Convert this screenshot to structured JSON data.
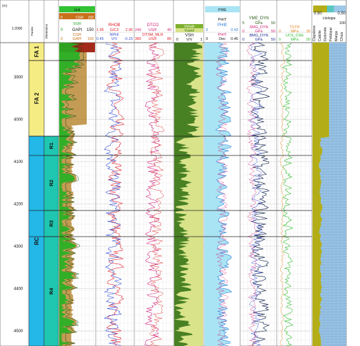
{
  "depth_track": {
    "scale_label": "1:2000",
    "ticks": [
      "3900",
      "4000",
      "4100",
      "4200",
      "4300",
      "4400",
      "4500"
    ]
  },
  "track_titles": {
    "facies": "Facies",
    "subfacies": "Elementos"
  },
  "facies": [
    {
      "label": "FA 1",
      "color": "#f5ec84"
    },
    {
      "label": "FA 2",
      "color": "#f5ec84"
    },
    {
      "label": "RC",
      "color": "#23b8e8"
    }
  ],
  "subfacies": [
    {
      "label": "R1",
      "color": "#1fc6b0"
    },
    {
      "label": "R2",
      "color": "#1fc6b0"
    },
    {
      "label": "R3",
      "color": "#1fc6b0"
    },
    {
      "label": "R4",
      "color": "#1fc6b0"
    }
  ],
  "gr_header": {
    "fill_label": "Unit",
    "cgr_label": "CGR",
    "cgr_min": "0",
    "cgr_max": "150",
    "sgr_label": "SGR",
    "gapi_min": "0",
    "gapi_unit": "GAPI",
    "gapi_max": "150",
    "cgr2_label": "CGR",
    "cgr2_min": "0",
    "cgr2_unit": "GAPI",
    "cgr2_max": "150"
  },
  "dens_header": {
    "rhob_label": "RHOB",
    "rhob_min": "1.95",
    "rhob_unit": "G/C3",
    "rhob_max": "2.95",
    "nphi_label": "NPHI",
    "nphi_min": "0.45",
    "nphi_unit": "V/V",
    "nphi_max": "-0.15"
  },
  "sonic_header": {
    "dtco_label": "DTCO",
    "dtco_min": "240",
    "dtco_unit": "US/F",
    "dtco_max": "40",
    "dtsm_label": "DTSM_MLR",
    "dtsm_min": "380",
    "dtsm_unit": "US/F",
    "dtsm_max": "80"
  },
  "vsh_header": {
    "vshale_label": "Vshale",
    "vshale_sub": "Vsand",
    "vsh_label": "VSH",
    "vsh_min": "0",
    "vsh_unit": "V/V",
    "vsh_max": "1"
  },
  "phi_header": {
    "phie_fill": "PHIE",
    "phit_label": "PHIT",
    "phie_label": "PHIE",
    "phie_min": "0",
    "phie_max": "0.43",
    "phit2_label": "PHIT",
    "phit_min": "0",
    "phit_unit": "Dec",
    "phit_max": "0.45"
  },
  "mech_header": {
    "yme_label": "YME_DYN",
    "yme_min": "5",
    "yme_unit": "GPa",
    "yme_max": "50",
    "smg_label": "SMG_DYN",
    "smg_min": "0",
    "smg_unit": "GPa",
    "smg_max": "50",
    "bmg_label": "BMG_DYN",
    "bmg_min": "0",
    "bmg_unit": "GPa",
    "bmg_max": "50"
  },
  "strength_header": {
    "tstr_label": "TSTR",
    "tstr_min": "0",
    "tstr_unit": "MPa",
    "tstr_max": "30",
    "ucs_label": "UCS_CNE",
    "ucs_min": "0",
    "ucs_unit": "MPa",
    "ucs_max": "50"
  },
  "litho_header": {
    "scale_min": "0.50",
    "scale_max": "0.50",
    "scale_title": "Litologia",
    "pct_label": "100",
    "legend": [
      "Claystone",
      "Calcite",
      "Dolomite",
      "Feldspar",
      "Marga",
      "Chica"
    ]
  },
  "colors": {
    "gr_green": "#22b022",
    "gr_brown": "#b07b1c",
    "rhob_red": "#e0202a",
    "nphi_blue": "#3650d6",
    "dtco_magenta": "#d0207a",
    "vsh_olive": "#2f6f12",
    "phie_cyan": "#a9e4f4",
    "mech_navy": "#1a2c54",
    "ucs_green": "#2dbd2d",
    "lith_blue": "#9ec8e8",
    "lith_clay": "#b3ae17"
  }
}
